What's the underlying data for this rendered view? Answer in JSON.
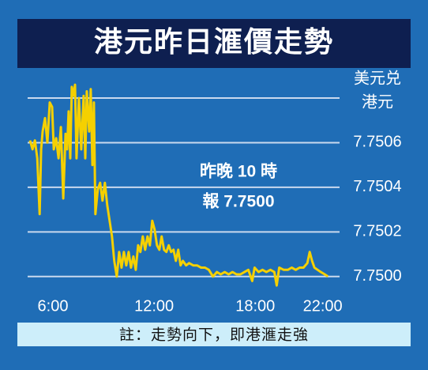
{
  "chart_data": {
    "type": "line",
    "title": "港元昨日滙價走勢",
    "y_label_lines": [
      "美元兑",
      "港元"
    ],
    "annotation_lines": [
      "昨晚 10 時",
      "報 7.7500"
    ],
    "note": "註：走勢向下，即港滙走強",
    "color": "#f5d000",
    "grid": true,
    "xlim": [
      4.5,
      23
    ],
    "xticks": [
      {
        "value": 6,
        "label": "6:00"
      },
      {
        "value": 12,
        "label": "12:00"
      },
      {
        "value": 18,
        "label": "18:00"
      },
      {
        "value": 22,
        "label": "22:00"
      }
    ],
    "ylim": [
      7.7499,
      7.7508
    ],
    "yticks": [
      {
        "value": 7.75,
        "label": "7.7500"
      },
      7.7502,
      7.7504,
      7.7506
    ],
    "x": [
      4.64,
      4.79,
      4.93,
      5.07,
      5.21,
      5.3,
      5.39,
      5.53,
      5.67,
      5.81,
      5.95,
      6.05,
      6.19,
      6.33,
      6.47,
      6.61,
      6.75,
      6.84,
      6.93,
      7.03,
      7.12,
      7.21,
      7.31,
      7.4,
      7.54,
      7.68,
      7.82,
      7.92,
      8.01,
      8.15,
      8.24,
      8.34,
      8.43,
      8.52,
      8.66,
      8.8,
      8.94,
      9.08,
      9.22,
      9.36,
      9.5,
      9.64,
      9.79,
      9.93,
      10.07,
      10.21,
      10.35,
      10.49,
      10.63,
      10.77,
      10.91,
      11.05,
      11.19,
      11.33,
      11.47,
      11.61,
      11.75,
      11.89,
      12.03,
      12.17,
      12.31,
      12.45,
      12.59,
      12.73,
      12.87,
      13.01,
      13.15,
      13.29,
      13.43,
      13.57,
      13.71,
      13.9,
      14.08,
      14.32,
      14.55,
      14.79,
      15.02,
      15.25,
      15.49,
      15.72,
      15.95,
      16.19,
      16.42,
      16.65,
      16.89,
      17.12,
      17.36,
      17.59,
      17.82,
      17.96,
      18.2,
      18.43,
      18.66,
      18.9,
      19.13,
      19.27,
      19.42,
      19.69,
      19.93,
      20.16,
      20.4,
      20.63,
      20.86,
      21.09,
      21.23,
      21.37,
      21.51,
      21.7,
      21.89,
      22.12,
      22.31
    ],
    "values": [
      7.75061,
      7.75057,
      7.75061,
      7.75053,
      7.75028,
      7.75057,
      7.75065,
      7.75071,
      7.7506,
      7.75078,
      7.75076,
      7.75057,
      7.75062,
      7.75053,
      7.75067,
      7.75035,
      7.75064,
      7.75057,
      7.75074,
      7.75053,
      7.75085,
      7.75081,
      7.75086,
      7.75053,
      7.7508,
      7.75057,
      7.75081,
      7.75053,
      7.75083,
      7.75065,
      7.75084,
      7.7505,
      7.75078,
      7.75028,
      7.75039,
      7.75042,
      7.75034,
      7.75042,
      7.75032,
      7.75025,
      7.75018,
      7.75007,
      7.75,
      7.75011,
      7.75004,
      7.75011,
      7.75005,
      7.75011,
      7.75004,
      7.75009,
      7.75003,
      7.75014,
      7.75011,
      7.75018,
      7.75012,
      7.75018,
      7.75014,
      7.75025,
      7.75021,
      7.75014,
      7.75012,
      7.75018,
      7.75012,
      7.75011,
      7.75014,
      7.75011,
      7.75012,
      7.75007,
      7.75012,
      7.75005,
      7.75007,
      7.75005,
      7.75006,
      7.75005,
      7.75005,
      7.75004,
      7.75004,
      7.75003,
      7.75,
      7.75002,
      7.75001,
      7.75002,
      7.75001,
      7.75002,
      7.75001,
      7.75001,
      7.75002,
      7.75003,
      7.74998,
      7.75004,
      7.75002,
      7.75003,
      7.75002,
      7.75003,
      7.75002,
      7.74996,
      7.75004,
      7.75003,
      7.75003,
      7.75004,
      7.75003,
      7.75004,
      7.75004,
      7.75006,
      7.75011,
      7.75007,
      7.75004,
      7.75003,
      7.75002,
      7.75001,
      7.75
    ]
  }
}
